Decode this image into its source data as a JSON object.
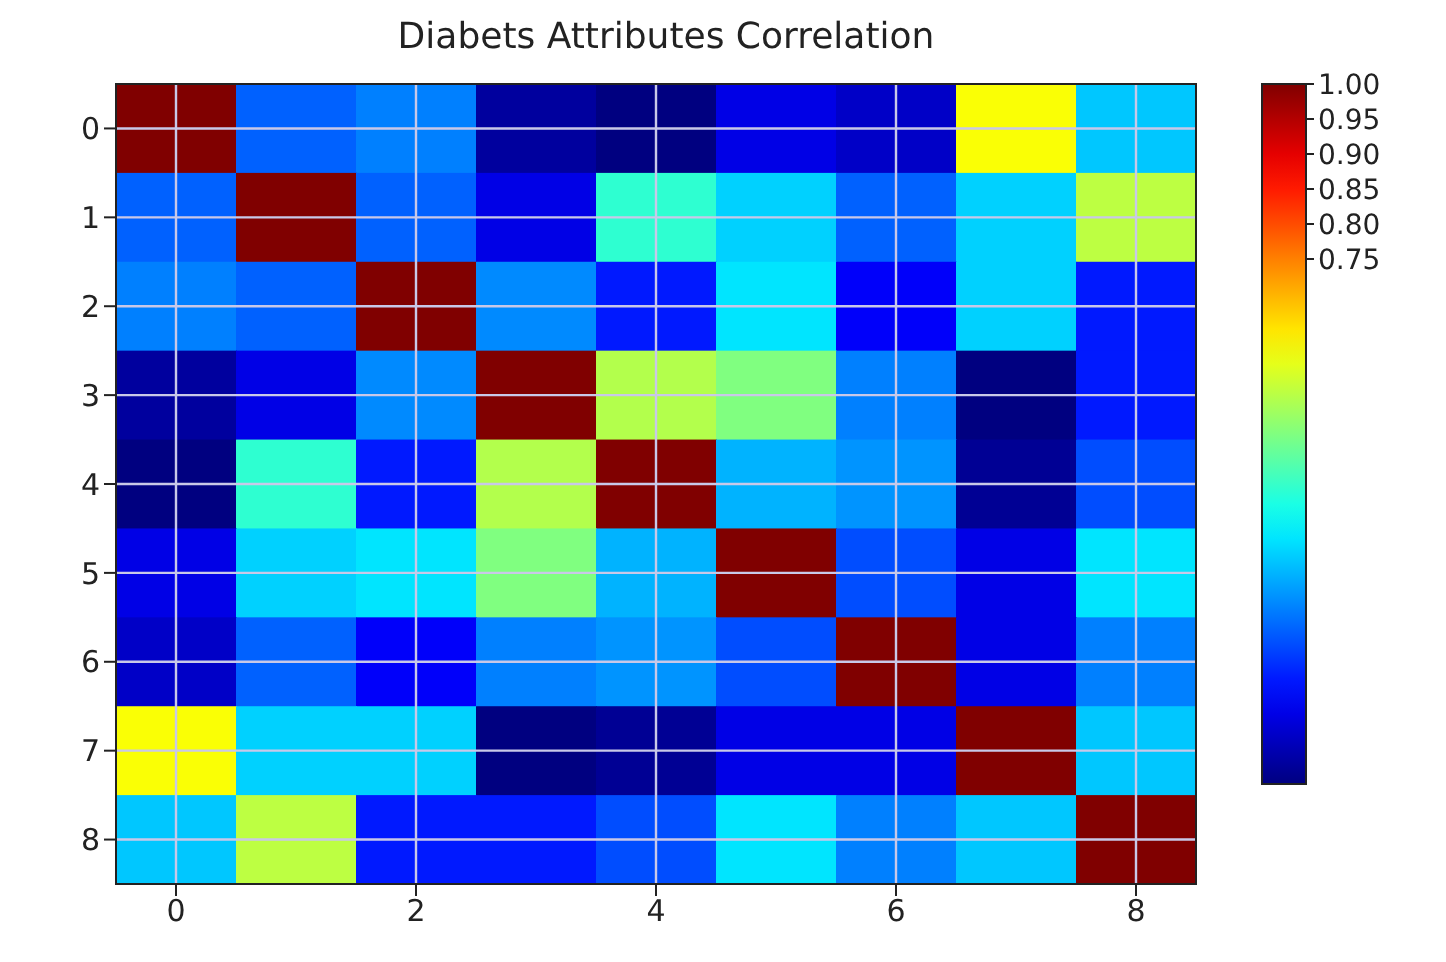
{
  "chart_data": {
    "type": "heatmap",
    "title": "Diabets Attributes Correlation",
    "categories": [
      "0",
      null,
      "2",
      null,
      "4",
      null,
      "6",
      null,
      "8"
    ],
    "y_categories": [
      "0",
      "1",
      "2",
      "3",
      "4",
      "5",
      "6",
      "7",
      "8"
    ],
    "cells": [
      [
        1.0,
        0.22,
        0.25,
        0.03,
        0.0,
        0.1,
        0.07,
        0.62,
        0.32
      ],
      [
        0.22,
        1.0,
        0.22,
        0.1,
        0.42,
        0.33,
        0.22,
        0.33,
        0.56
      ],
      [
        0.25,
        0.22,
        1.0,
        0.26,
        0.15,
        0.35,
        0.12,
        0.33,
        0.15
      ],
      [
        0.03,
        0.1,
        0.26,
        1.0,
        0.55,
        0.5,
        0.25,
        0.0,
        0.15
      ],
      [
        0.0,
        0.42,
        0.15,
        0.55,
        1.0,
        0.3,
        0.27,
        0.02,
        0.2
      ],
      [
        0.1,
        0.33,
        0.35,
        0.5,
        0.3,
        1.0,
        0.2,
        0.1,
        0.35
      ],
      [
        0.07,
        0.22,
        0.12,
        0.25,
        0.27,
        0.2,
        1.0,
        0.1,
        0.25
      ],
      [
        0.62,
        0.33,
        0.33,
        0.0,
        0.02,
        0.1,
        0.1,
        1.0,
        0.32
      ],
      [
        0.32,
        0.56,
        0.15,
        0.15,
        0.2,
        0.35,
        0.25,
        0.32,
        1.0
      ]
    ],
    "clim": [
      0,
      1
    ],
    "cticks": [
      {
        "value": 1,
        "label": "1.00"
      },
      {
        "value": 0.95,
        "label": "0.95"
      },
      {
        "value": 0.9,
        "label": "0.90"
      },
      {
        "value": 0.85,
        "label": "0.85"
      },
      {
        "value": 0.8,
        "label": "0.80"
      },
      {
        "value": 0.75,
        "label": "0.75"
      }
    ],
    "grid": true
  }
}
